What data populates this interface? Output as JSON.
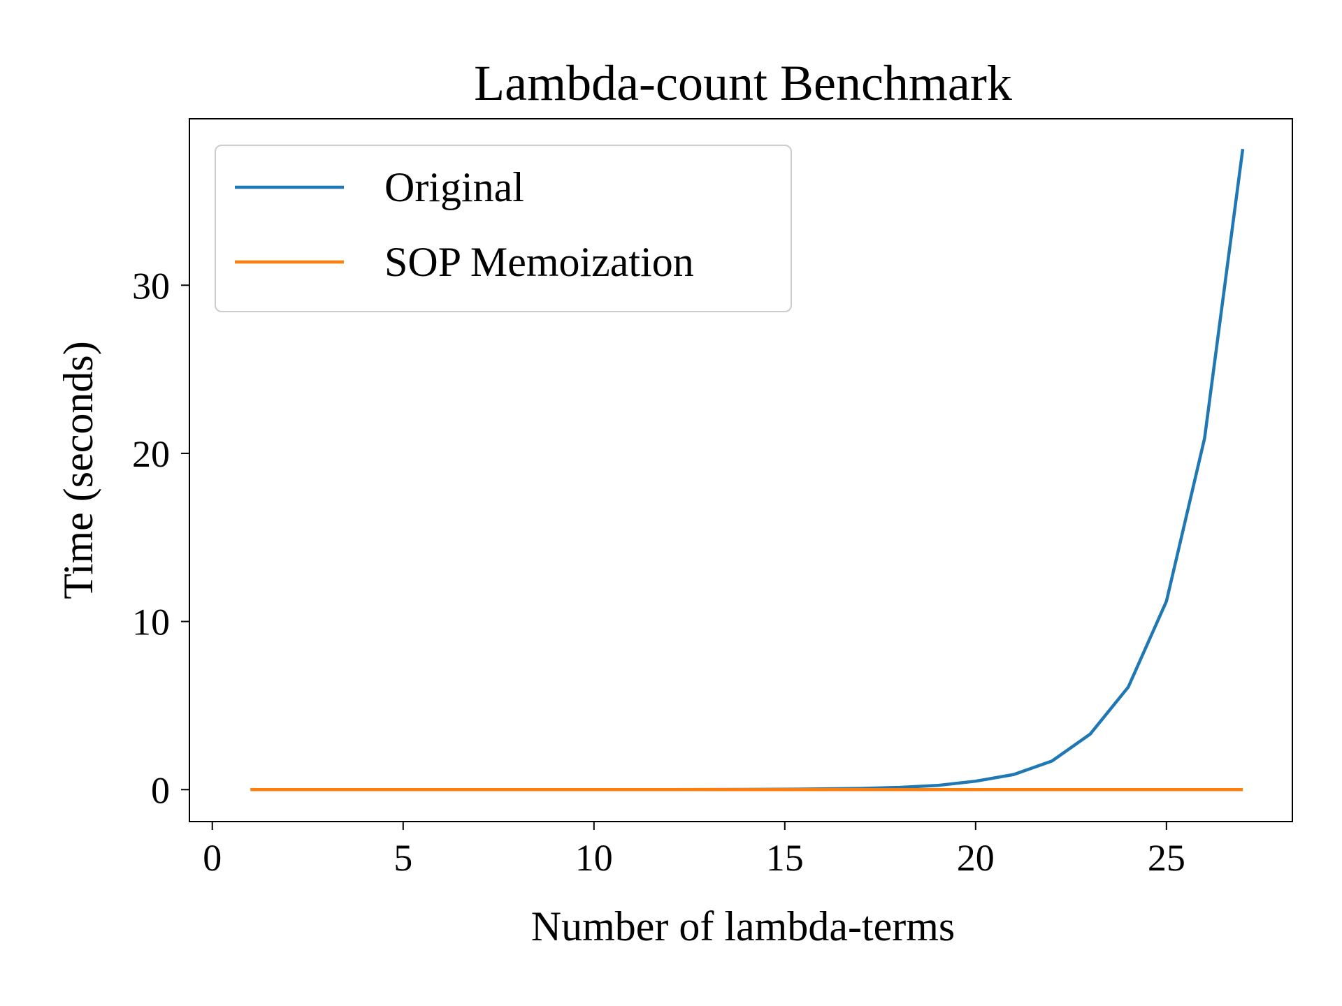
{
  "chart_data": {
    "type": "line",
    "title": "Lambda-count Benchmark",
    "xlabel": "Number of lambda-terms",
    "ylabel": "Time (seconds)",
    "xlim": [
      -0.6,
      28.3
    ],
    "ylim": [
      -1.9,
      39.9
    ],
    "xticks": [
      0,
      5,
      10,
      15,
      20,
      25
    ],
    "yticks": [
      0,
      10,
      20,
      30
    ],
    "grid": false,
    "legend_position": "upper-left",
    "x": [
      1,
      2,
      3,
      4,
      5,
      6,
      7,
      8,
      9,
      10,
      11,
      12,
      13,
      14,
      15,
      16,
      17,
      18,
      19,
      20,
      21,
      22,
      23,
      24,
      25,
      26,
      27
    ],
    "series": [
      {
        "name": "Original",
        "color": "#1f77b4",
        "values": [
          0,
          0,
          0,
          0,
          0,
          0,
          0,
          0,
          0,
          0,
          0,
          0.003,
          0.006,
          0.012,
          0.02,
          0.04,
          0.07,
          0.13,
          0.25,
          0.5,
          0.9,
          1.7,
          3.3,
          6.1,
          11.2,
          20.9,
          38.1
        ]
      },
      {
        "name": "SOP Memoization",
        "color": "#ff7f0e",
        "values": [
          0,
          0,
          0,
          0,
          0,
          0,
          0,
          0,
          0,
          0,
          0,
          0,
          0,
          0,
          0,
          0,
          0,
          0,
          0,
          0,
          0,
          0,
          0,
          0,
          0,
          0,
          0
        ]
      }
    ]
  }
}
